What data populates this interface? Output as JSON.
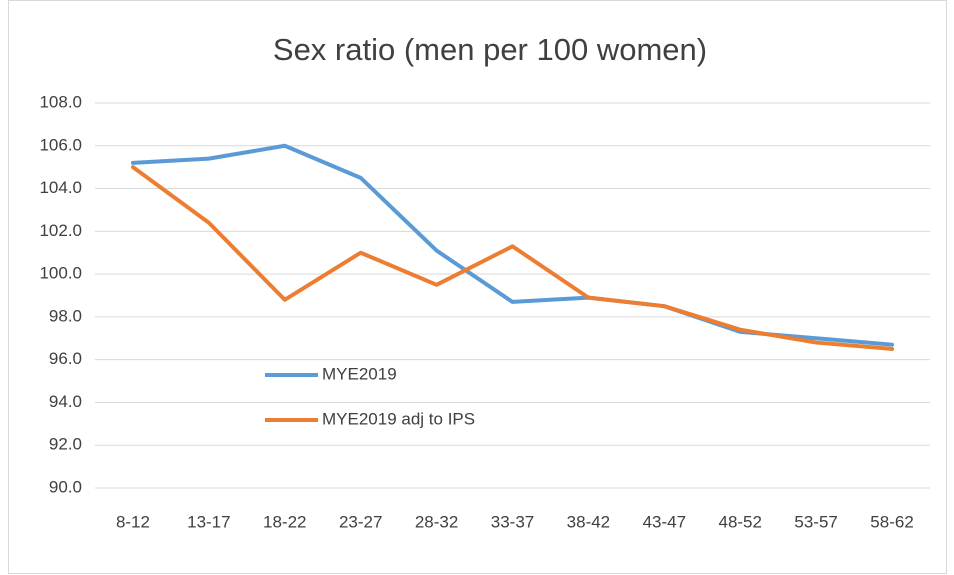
{
  "chart_data": {
    "type": "line",
    "title": "Sex ratio (men per 100 women)",
    "categories": [
      "8-12",
      "13-17",
      "18-22",
      "23-27",
      "28-32",
      "33-37",
      "38-42",
      "43-47",
      "48-52",
      "53-57",
      "58-62"
    ],
    "series": [
      {
        "name": "MYE2019",
        "color": "#5b9bd5",
        "values": [
          105.2,
          105.4,
          106.0,
          104.5,
          101.1,
          98.7,
          98.9,
          98.5,
          97.3,
          97.0,
          96.7
        ]
      },
      {
        "name": "MYE2019 adj to IPS",
        "color": "#ed7d31",
        "values": [
          105.0,
          102.4,
          98.8,
          101.0,
          99.5,
          101.3,
          98.9,
          98.5,
          97.4,
          96.8,
          96.5
        ]
      }
    ],
    "ylim": [
      90,
      108
    ],
    "yticks": [
      {
        "value": 90,
        "label": "90.0"
      },
      {
        "value": 92,
        "label": "92.0"
      },
      {
        "value": 94,
        "label": "94.0"
      },
      {
        "value": 96,
        "label": "96.0"
      },
      {
        "value": 98,
        "label": "98.0"
      },
      {
        "value": 100,
        "label": "100.0"
      },
      {
        "value": 102,
        "label": "102.0"
      },
      {
        "value": 104,
        "label": "104.0"
      },
      {
        "value": 106,
        "label": "106.0"
      },
      {
        "value": 108,
        "label": "108.0"
      }
    ],
    "grid": true,
    "legend": "inside-left"
  }
}
